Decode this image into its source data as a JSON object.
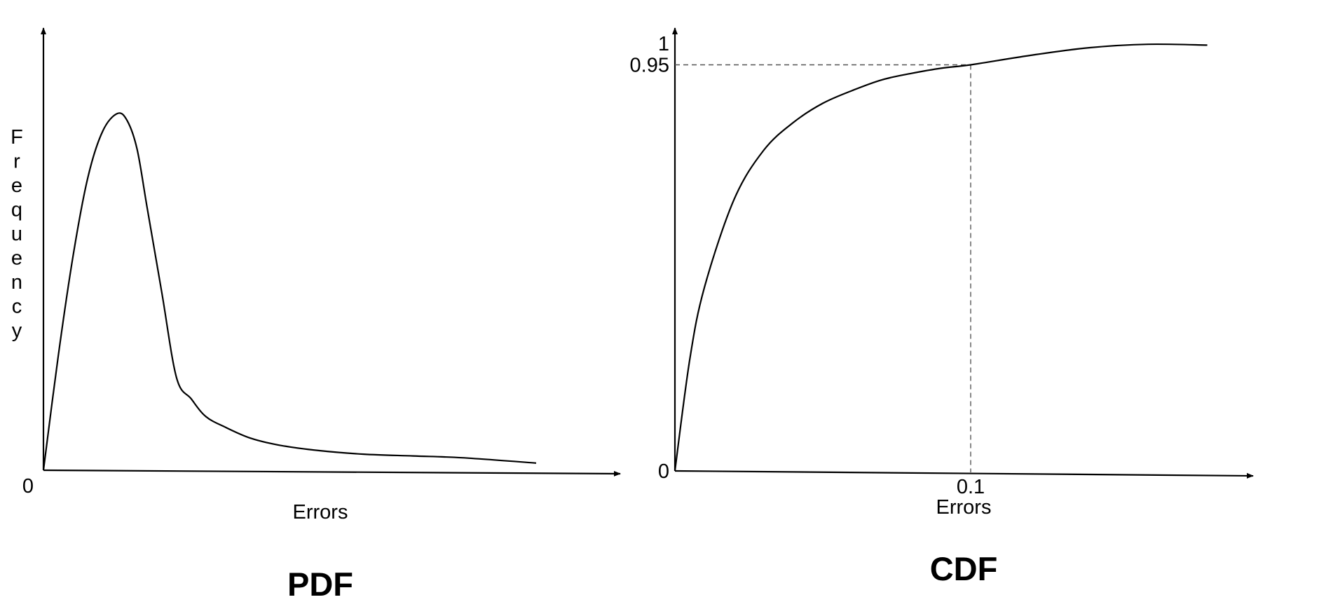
{
  "chart_data": [
    {
      "type": "line",
      "title": "PDF",
      "xlabel": "Errors",
      "ylabel": "Frequency",
      "x_tick_labels": [
        "0"
      ],
      "y_tick_labels": [],
      "grid": false,
      "series": [
        {
          "x": [
            0,
            0.03,
            0.06,
            0.09,
            0.12,
            0.15,
            0.17,
            0.19,
            0.21,
            0.24,
            0.27,
            0.3,
            0.33,
            0.37,
            0.42,
            0.48,
            0.56,
            0.65,
            0.75,
            0.85,
            1.0
          ],
          "y": [
            0,
            0.32,
            0.6,
            0.82,
            0.95,
            1.0,
            0.98,
            0.9,
            0.74,
            0.5,
            0.26,
            0.2,
            0.15,
            0.12,
            0.09,
            0.07,
            0.055,
            0.045,
            0.04,
            0.035,
            0.02
          ]
        }
      ]
    },
    {
      "type": "line",
      "title": "CDF",
      "xlabel": "Errors",
      "ylabel": "",
      "x_tick_labels": [
        "0.1"
      ],
      "y_tick_labels": [
        "0",
        "0.95",
        "1"
      ],
      "grid": false,
      "reference_point": {
        "x": 0.1,
        "y": 0.95
      },
      "series": [
        {
          "x": [
            0,
            0.005,
            0.01,
            0.02,
            0.03,
            0.04,
            0.05,
            0.06,
            0.07,
            0.08,
            0.09,
            0.1,
            0.12,
            0.14,
            0.16,
            0.18
          ],
          "y": [
            0,
            0.26,
            0.43,
            0.635,
            0.75,
            0.815,
            0.86,
            0.89,
            0.915,
            0.93,
            0.942,
            0.95,
            0.972,
            0.99,
            0.998,
            0.996
          ]
        }
      ]
    }
  ]
}
